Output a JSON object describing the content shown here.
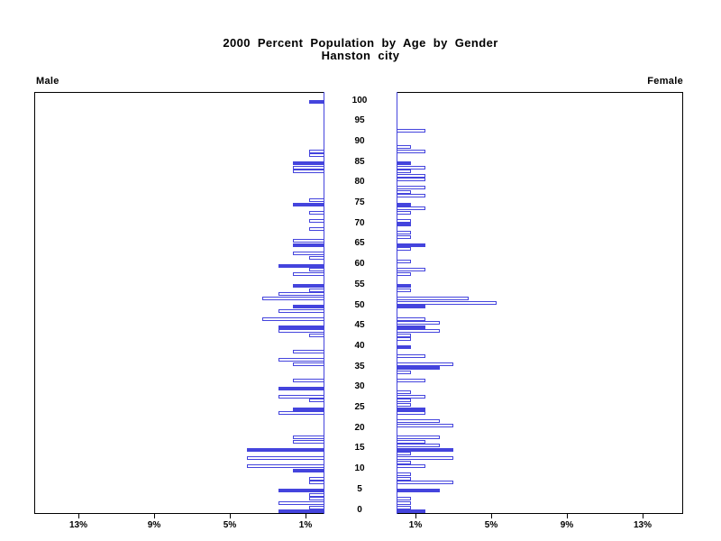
{
  "header": {
    "title": "2000 Percent Population by Age by Gender",
    "subtitle": "Hanston city"
  },
  "panels": {
    "left_label": "Male",
    "right_label": "Female"
  },
  "chart_data": {
    "type": "bar",
    "variant": "population_pyramid",
    "title": "2000 Percent Population by Age by Gender",
    "subtitle": "Hanston city",
    "legend": "none",
    "grid": "off",
    "style_note": "one horizontal bar per single year of age; ages at multiples of 5 drawn solid blue, all other ages drawn hollow with blue outline; male bars extend left from center, female bars extend right",
    "colors": {
      "bar_blue": "#4444dd",
      "hollow_fill": "#ffffff",
      "frame_black": "#000000"
    },
    "age_axis": {
      "min": 0,
      "max": 100,
      "label_interval": 5,
      "tick_labels": [
        "0",
        "5",
        "10",
        "15",
        "20",
        "25",
        "30",
        "35",
        "40",
        "45",
        "50",
        "55",
        "60",
        "65",
        "70",
        "75",
        "80",
        "85",
        "90",
        "95",
        "100"
      ]
    },
    "percent_axis": {
      "tick_values": [
        1,
        5,
        9,
        13
      ],
      "male_tick_labels_left_to_right": [
        "13%",
        "9%",
        "5%",
        "1%"
      ],
      "female_tick_labels_left_to_right": [
        "1%",
        "5%",
        "9%",
        "13%"
      ],
      "tick_label_suffix": "%",
      "max_percent": 15
    },
    "series": [
      {
        "name": "Male",
        "side": "left",
        "points": [
          [
            0,
            2.45
          ],
          [
            1,
            0.8
          ],
          [
            2,
            2.45
          ],
          [
            3,
            0.8
          ],
          [
            4,
            0.8
          ],
          [
            5,
            2.45
          ],
          [
            7,
            0.8
          ],
          [
            8,
            0.8
          ],
          [
            10,
            1.65
          ],
          [
            11,
            4.1
          ],
          [
            13,
            4.1
          ],
          [
            15,
            4.1
          ],
          [
            17,
            1.65
          ],
          [
            18,
            1.65
          ],
          [
            24,
            2.45
          ],
          [
            25,
            1.65
          ],
          [
            27,
            0.8
          ],
          [
            28,
            2.45
          ],
          [
            30,
            2.45
          ],
          [
            32,
            1.65
          ],
          [
            36,
            1.65
          ],
          [
            37,
            2.45
          ],
          [
            39,
            1.65
          ],
          [
            43,
            0.8
          ],
          [
            44,
            2.45
          ],
          [
            45,
            2.45
          ],
          [
            47,
            3.3
          ],
          [
            49,
            2.45
          ],
          [
            50,
            1.65
          ],
          [
            52,
            3.3
          ],
          [
            53,
            2.45
          ],
          [
            54,
            0.8
          ],
          [
            55,
            1.65
          ],
          [
            58,
            1.65
          ],
          [
            59,
            0.8
          ],
          [
            60,
            2.45
          ],
          [
            62,
            0.8
          ],
          [
            63,
            1.65
          ],
          [
            65,
            1.65
          ],
          [
            66,
            1.65
          ],
          [
            69,
            0.8
          ],
          [
            71,
            0.8
          ],
          [
            73,
            0.8
          ],
          [
            75,
            1.65
          ],
          [
            76,
            0.8
          ],
          [
            83,
            1.65
          ],
          [
            84,
            1.65
          ],
          [
            85,
            1.65
          ],
          [
            87,
            0.8
          ],
          [
            88,
            0.8
          ],
          [
            100,
            0.8
          ]
        ]
      },
      {
        "name": "Female",
        "side": "right",
        "points": [
          [
            0,
            1.5
          ],
          [
            1,
            0.75
          ],
          [
            2,
            0.75
          ],
          [
            3,
            0.75
          ],
          [
            5,
            2.3
          ],
          [
            7,
            3.0
          ],
          [
            8,
            0.75
          ],
          [
            9,
            0.75
          ],
          [
            11,
            1.5
          ],
          [
            12,
            0.75
          ],
          [
            13,
            3.0
          ],
          [
            14,
            0.75
          ],
          [
            15,
            3.0
          ],
          [
            16,
            2.3
          ],
          [
            17,
            1.5
          ],
          [
            18,
            2.3
          ],
          [
            21,
            3.0
          ],
          [
            22,
            2.3
          ],
          [
            24,
            1.5
          ],
          [
            25,
            1.5
          ],
          [
            26,
            0.75
          ],
          [
            27,
            0.75
          ],
          [
            28,
            1.5
          ],
          [
            29,
            0.75
          ],
          [
            32,
            1.5
          ],
          [
            34,
            0.75
          ],
          [
            35,
            2.3
          ],
          [
            36,
            3.0
          ],
          [
            38,
            1.5
          ],
          [
            40,
            0.75
          ],
          [
            42,
            0.75
          ],
          [
            43,
            0.75
          ],
          [
            44,
            2.3
          ],
          [
            45,
            1.5
          ],
          [
            46,
            2.3
          ],
          [
            47,
            1.5
          ],
          [
            50,
            1.5
          ],
          [
            51,
            5.3
          ],
          [
            52,
            3.8
          ],
          [
            54,
            0.75
          ],
          [
            55,
            0.75
          ],
          [
            58,
            0.75
          ],
          [
            59,
            1.5
          ],
          [
            61,
            0.75
          ],
          [
            64,
            0.75
          ],
          [
            65,
            1.5
          ],
          [
            67,
            0.75
          ],
          [
            68,
            0.75
          ],
          [
            70,
            0.75
          ],
          [
            71,
            0.75
          ],
          [
            73,
            0.75
          ],
          [
            74,
            1.5
          ],
          [
            75,
            0.75
          ],
          [
            77,
            1.5
          ],
          [
            78,
            0.75
          ],
          [
            79,
            1.5
          ],
          [
            81,
            1.5
          ],
          [
            82,
            1.5
          ],
          [
            83,
            0.75
          ],
          [
            84,
            1.5
          ],
          [
            85,
            0.75
          ],
          [
            88,
            1.5
          ],
          [
            89,
            0.75
          ],
          [
            93,
            1.5
          ]
        ]
      }
    ]
  }
}
